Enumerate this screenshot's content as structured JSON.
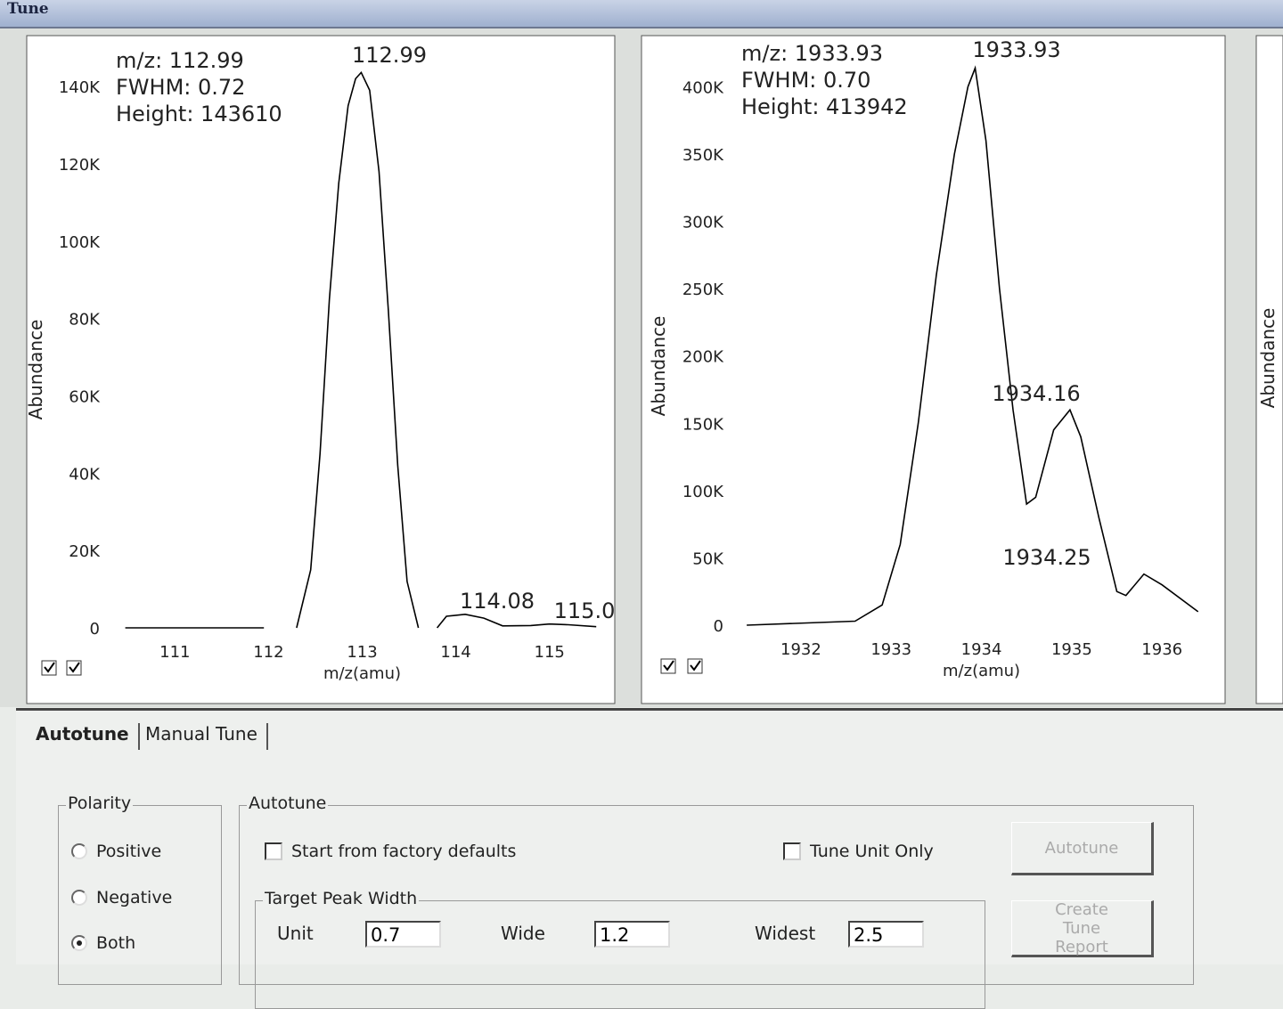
{
  "window_title": "Tune",
  "chart_data": [
    {
      "type": "line",
      "x_label": "m/z(amu)",
      "y_label": "Abundance",
      "info": [
        "m/z: 112.99",
        "FWHM: 0.72",
        "Height: 143610"
      ],
      "peak_labels": [
        "112.99",
        "114.08",
        "115.0"
      ],
      "x": [
        110.47,
        111.95,
        null,
        112.3,
        112.45,
        112.55,
        112.65,
        112.75,
        112.85,
        112.93,
        112.99,
        113.08,
        113.18,
        113.28,
        113.38,
        113.48,
        113.6,
        null,
        113.8,
        113.9,
        114.1,
        114.3,
        114.5,
        114.8,
        115.0,
        115.2,
        115.5
      ],
      "values": [
        0,
        0,
        null,
        0,
        15000,
        45000,
        85000,
        115000,
        135000,
        142000,
        143610,
        139000,
        118000,
        82000,
        42000,
        12000,
        0,
        null,
        0,
        3000,
        3500,
        2500,
        500,
        600,
        1000,
        800,
        300
      ],
      "color": "#000000",
      "xlim": [
        110.35,
        115.65
      ],
      "ylim": [
        0,
        152000
      ],
      "xticks": [
        111,
        112,
        113,
        114,
        115
      ],
      "yticks": [
        0,
        {
          "value": 20000,
          "label": "20K"
        },
        {
          "value": 40000,
          "label": "40K"
        },
        {
          "value": 60000,
          "label": "60K"
        },
        {
          "value": 80000,
          "label": "80K"
        },
        {
          "value": 100000,
          "label": "100K"
        },
        {
          "value": 120000,
          "label": "120K"
        },
        {
          "value": 140000,
          "label": "140K"
        }
      ]
    },
    {
      "type": "line",
      "x_label": "m/z(amu)",
      "y_label": "Abundance",
      "info": [
        "m/z: 1933.93",
        "FWHM: 0.70",
        "Height: 413942"
      ],
      "peak_labels": [
        "1933.93",
        "1934.16",
        "1934.25"
      ],
      "x": [
        1931.4,
        1932.6,
        1932.9,
        1933.1,
        1933.3,
        1933.5,
        1933.7,
        1933.85,
        1933.93,
        1934.05,
        1934.2,
        1934.35,
        1934.5,
        1934.6,
        1934.8,
        1934.98,
        1935.1,
        1935.3,
        1935.5,
        1935.6,
        1935.8,
        1936.0,
        1936.4
      ],
      "values": [
        0,
        3000,
        15000,
        60000,
        150000,
        260000,
        350000,
        400000,
        413942,
        360000,
        250000,
        160000,
        90000,
        95000,
        145000,
        160000,
        140000,
        80000,
        25000,
        22000,
        38000,
        30000,
        10000
      ],
      "color": "#000000",
      "xlim": [
        1931.3,
        1936.6
      ],
      "ylim": [
        0,
        438000
      ],
      "xticks": [
        1932,
        1933,
        1934,
        1935,
        1936
      ],
      "yticks": [
        0,
        {
          "value": 50000,
          "label": "50K"
        },
        {
          "value": 100000,
          "label": "100K"
        },
        {
          "value": 150000,
          "label": "150K"
        },
        {
          "value": 200000,
          "label": "200K"
        },
        {
          "value": 250000,
          "label": "250K"
        },
        {
          "value": 300000,
          "label": "300K"
        },
        {
          "value": 350000,
          "label": "350K"
        },
        {
          "value": 400000,
          "label": "400K"
        }
      ]
    }
  ],
  "side_panel": {
    "y_label": "Abundance"
  },
  "tabs": [
    "Autotune",
    "Manual Tune"
  ],
  "polarity": {
    "title": "Polarity",
    "options": [
      "Positive",
      "Negative",
      "Both"
    ],
    "selected": 2
  },
  "autotune": {
    "title": "Autotune",
    "start_from_factory_defaults": "Start from factory defaults",
    "tune_unit_only": "Tune Unit Only",
    "target_peak_width": {
      "title": "Target Peak Width",
      "fields": [
        {
          "label": "Unit",
          "value": "0.7"
        },
        {
          "label": "Wide",
          "value": "1.2"
        },
        {
          "label": "Widest",
          "value": "2.5"
        }
      ]
    },
    "buttons": [
      "Autotune",
      "Create Tune Report"
    ]
  }
}
